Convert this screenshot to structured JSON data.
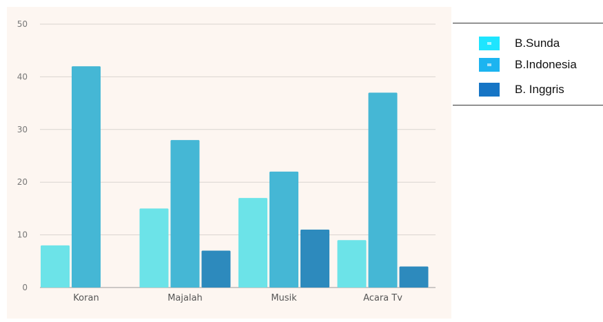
{
  "chart_data": {
    "type": "bar",
    "categories": [
      "Koran",
      "Majalah",
      "Musik",
      "Acara Tv"
    ],
    "series": [
      {
        "name": "B.Sunda",
        "values": [
          8,
          15,
          17,
          9
        ],
        "color": "#6ce3e8"
      },
      {
        "name": "B.Indonesia",
        "values": [
          42,
          28,
          22,
          37
        ],
        "color": "#45b7d5"
      },
      {
        "name": "B. Inggris",
        "values": [
          0,
          7,
          11,
          4
        ],
        "color": "#2d8abd"
      }
    ],
    "y_ticks": [
      "0",
      "10",
      "20",
      "30",
      "40",
      "50"
    ],
    "ylim": [
      0,
      50
    ],
    "grid": true,
    "legend_position": "right"
  },
  "legend": {
    "items": [
      {
        "label": "B.Sunda",
        "color": "#1ee5ff"
      },
      {
        "label": "B.Indonesia",
        "color": "#1cb4f0"
      },
      {
        "label": "B. Inggris",
        "color": "#1675c5"
      }
    ]
  }
}
